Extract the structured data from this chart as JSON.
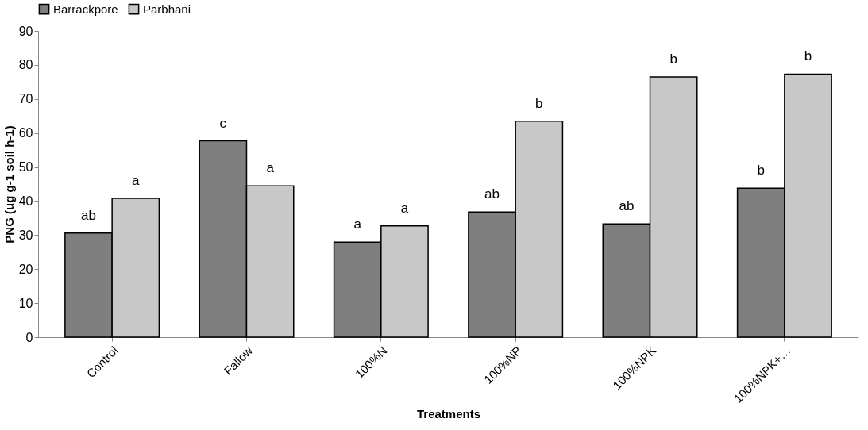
{
  "chart_data": {
    "type": "bar",
    "xlabel": "Treatments",
    "ylabel": "PNG (ug g-1 soil h-1)",
    "categories": [
      "Control",
      "Fallow",
      "100%N",
      "100%NP",
      "100%NPK",
      "100%NPK+…"
    ],
    "series": [
      {
        "name": "Barrackpore",
        "color": "#7f7f7f",
        "values": [
          30.6,
          57.7,
          27.9,
          36.8,
          33.3,
          43.8
        ]
      },
      {
        "name": "Parbhani",
        "color": "#c8c8c8",
        "values": [
          40.8,
          44.5,
          32.7,
          63.5,
          76.5,
          77.3
        ]
      }
    ],
    "ylim": [
      0,
      90
    ],
    "yticks": [
      0,
      10,
      20,
      30,
      40,
      50,
      60,
      70,
      80,
      90
    ],
    "grid": false,
    "legend": "top",
    "annotations": [
      {
        "text": "ab",
        "x": "Control",
        "y": 30.6
      },
      {
        "text": "a",
        "x": "Control",
        "y": 40.8
      },
      {
        "text": "c",
        "x": "Fallow",
        "y": 57.7
      },
      {
        "text": "a",
        "x": "Fallow",
        "y": 44.5
      },
      {
        "text": "a",
        "x": "100%N",
        "y": 27.9
      },
      {
        "text": "a",
        "x": "100%N",
        "y": 32.7
      },
      {
        "text": "ab",
        "x": "100%NP",
        "y": 36.8
      },
      {
        "text": "b",
        "x": "100%NP",
        "y": 63.5
      },
      {
        "text": "ab",
        "x": "100%NPK",
        "y": 33.3
      },
      {
        "text": "b",
        "x": "100%NPK",
        "y": 76.5
      },
      {
        "text": "b",
        "x": "100%NPK+…",
        "y": 43.8
      },
      {
        "text": "b",
        "x": "100%NPK+…",
        "y": 77.3
      }
    ]
  }
}
